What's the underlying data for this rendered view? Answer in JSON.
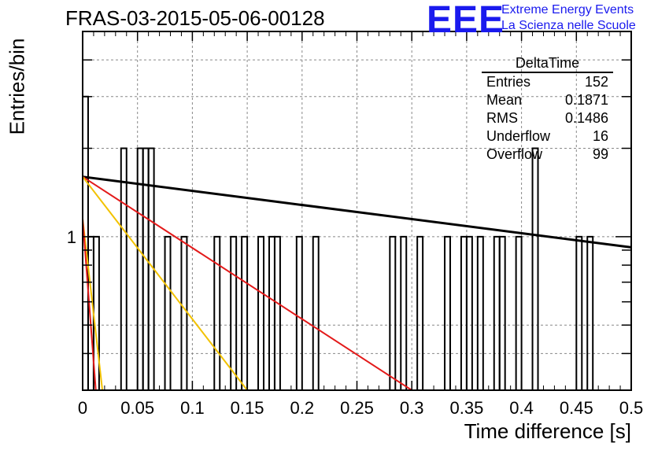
{
  "header": {
    "title": "FRAS-03-2015-05-06-00128",
    "logo_text": "EEE",
    "logo_line1": "Extreme Energy Events",
    "logo_line2": "La Scienza nelle Scuole"
  },
  "stats_box": {
    "title": "DeltaTime",
    "rows": [
      {
        "label": "Entries",
        "value": "152"
      },
      {
        "label": "Mean",
        "value": "0.1871"
      },
      {
        "label": "RMS",
        "value": "0.1486"
      },
      {
        "label": "Underflow",
        "value": "16"
      },
      {
        "label": "Overflow",
        "value": "99"
      }
    ]
  },
  "chart_data": {
    "type": "histogram",
    "xlabel": "Time difference [s]",
    "ylabel": "Entries/bin",
    "xlim": [
      0,
      0.5
    ],
    "ylog": true,
    "ylim": [
      0.3,
      5
    ],
    "grid": true,
    "x_ticks": [
      0,
      0.05,
      0.1,
      0.15,
      0.2,
      0.25,
      0.3,
      0.35,
      0.4,
      0.45,
      0.5
    ],
    "x_tick_labels": [
      "0",
      "0.05",
      "0.1",
      "0.15",
      "0.2",
      "0.25",
      "0.3",
      "0.35",
      "0.4",
      "0.45",
      "0.5"
    ],
    "y_tick_labels": [
      {
        "value": 1,
        "label": "1"
      }
    ],
    "bin_width": 0.005,
    "bins": [
      {
        "x": 0.0,
        "count": 3
      },
      {
        "x": 0.005,
        "count": 1
      },
      {
        "x": 0.01,
        "count": 1
      },
      {
        "x": 0.035,
        "count": 2
      },
      {
        "x": 0.05,
        "count": 2
      },
      {
        "x": 0.055,
        "count": 2
      },
      {
        "x": 0.06,
        "count": 2
      },
      {
        "x": 0.075,
        "count": 1
      },
      {
        "x": 0.09,
        "count": 1
      },
      {
        "x": 0.12,
        "count": 1
      },
      {
        "x": 0.135,
        "count": 1
      },
      {
        "x": 0.145,
        "count": 1
      },
      {
        "x": 0.16,
        "count": 1
      },
      {
        "x": 0.17,
        "count": 1
      },
      {
        "x": 0.175,
        "count": 1
      },
      {
        "x": 0.195,
        "count": 1
      },
      {
        "x": 0.21,
        "count": 1
      },
      {
        "x": 0.28,
        "count": 1
      },
      {
        "x": 0.29,
        "count": 1
      },
      {
        "x": 0.305,
        "count": 1
      },
      {
        "x": 0.33,
        "count": 1
      },
      {
        "x": 0.345,
        "count": 1
      },
      {
        "x": 0.35,
        "count": 1
      },
      {
        "x": 0.36,
        "count": 1
      },
      {
        "x": 0.375,
        "count": 1
      },
      {
        "x": 0.38,
        "count": 1
      },
      {
        "x": 0.395,
        "count": 1
      },
      {
        "x": 0.41,
        "count": 2
      },
      {
        "x": 0.45,
        "count": 1
      },
      {
        "x": 0.46,
        "count": 1
      }
    ],
    "fits": [
      {
        "color": "#000000",
        "x0": 0,
        "y0": 1.6,
        "x1": 0.5,
        "y1": 0.92
      },
      {
        "color": "#e31a1a",
        "x0": 0,
        "y0": 1.6,
        "x1": 0.3,
        "y1": 0.3
      },
      {
        "color": "#f2c200",
        "x0": 0,
        "y0": 1.6,
        "x1": 0.15,
        "y1": 0.3
      },
      {
        "color": "#f2c200",
        "x0": 0,
        "y0": 1.15,
        "x1": 0.018,
        "y1": 0.3
      },
      {
        "color": "#e31a1a",
        "x0": 0,
        "y0": 1.15,
        "x1": 0.012,
        "y1": 0.3
      }
    ]
  }
}
